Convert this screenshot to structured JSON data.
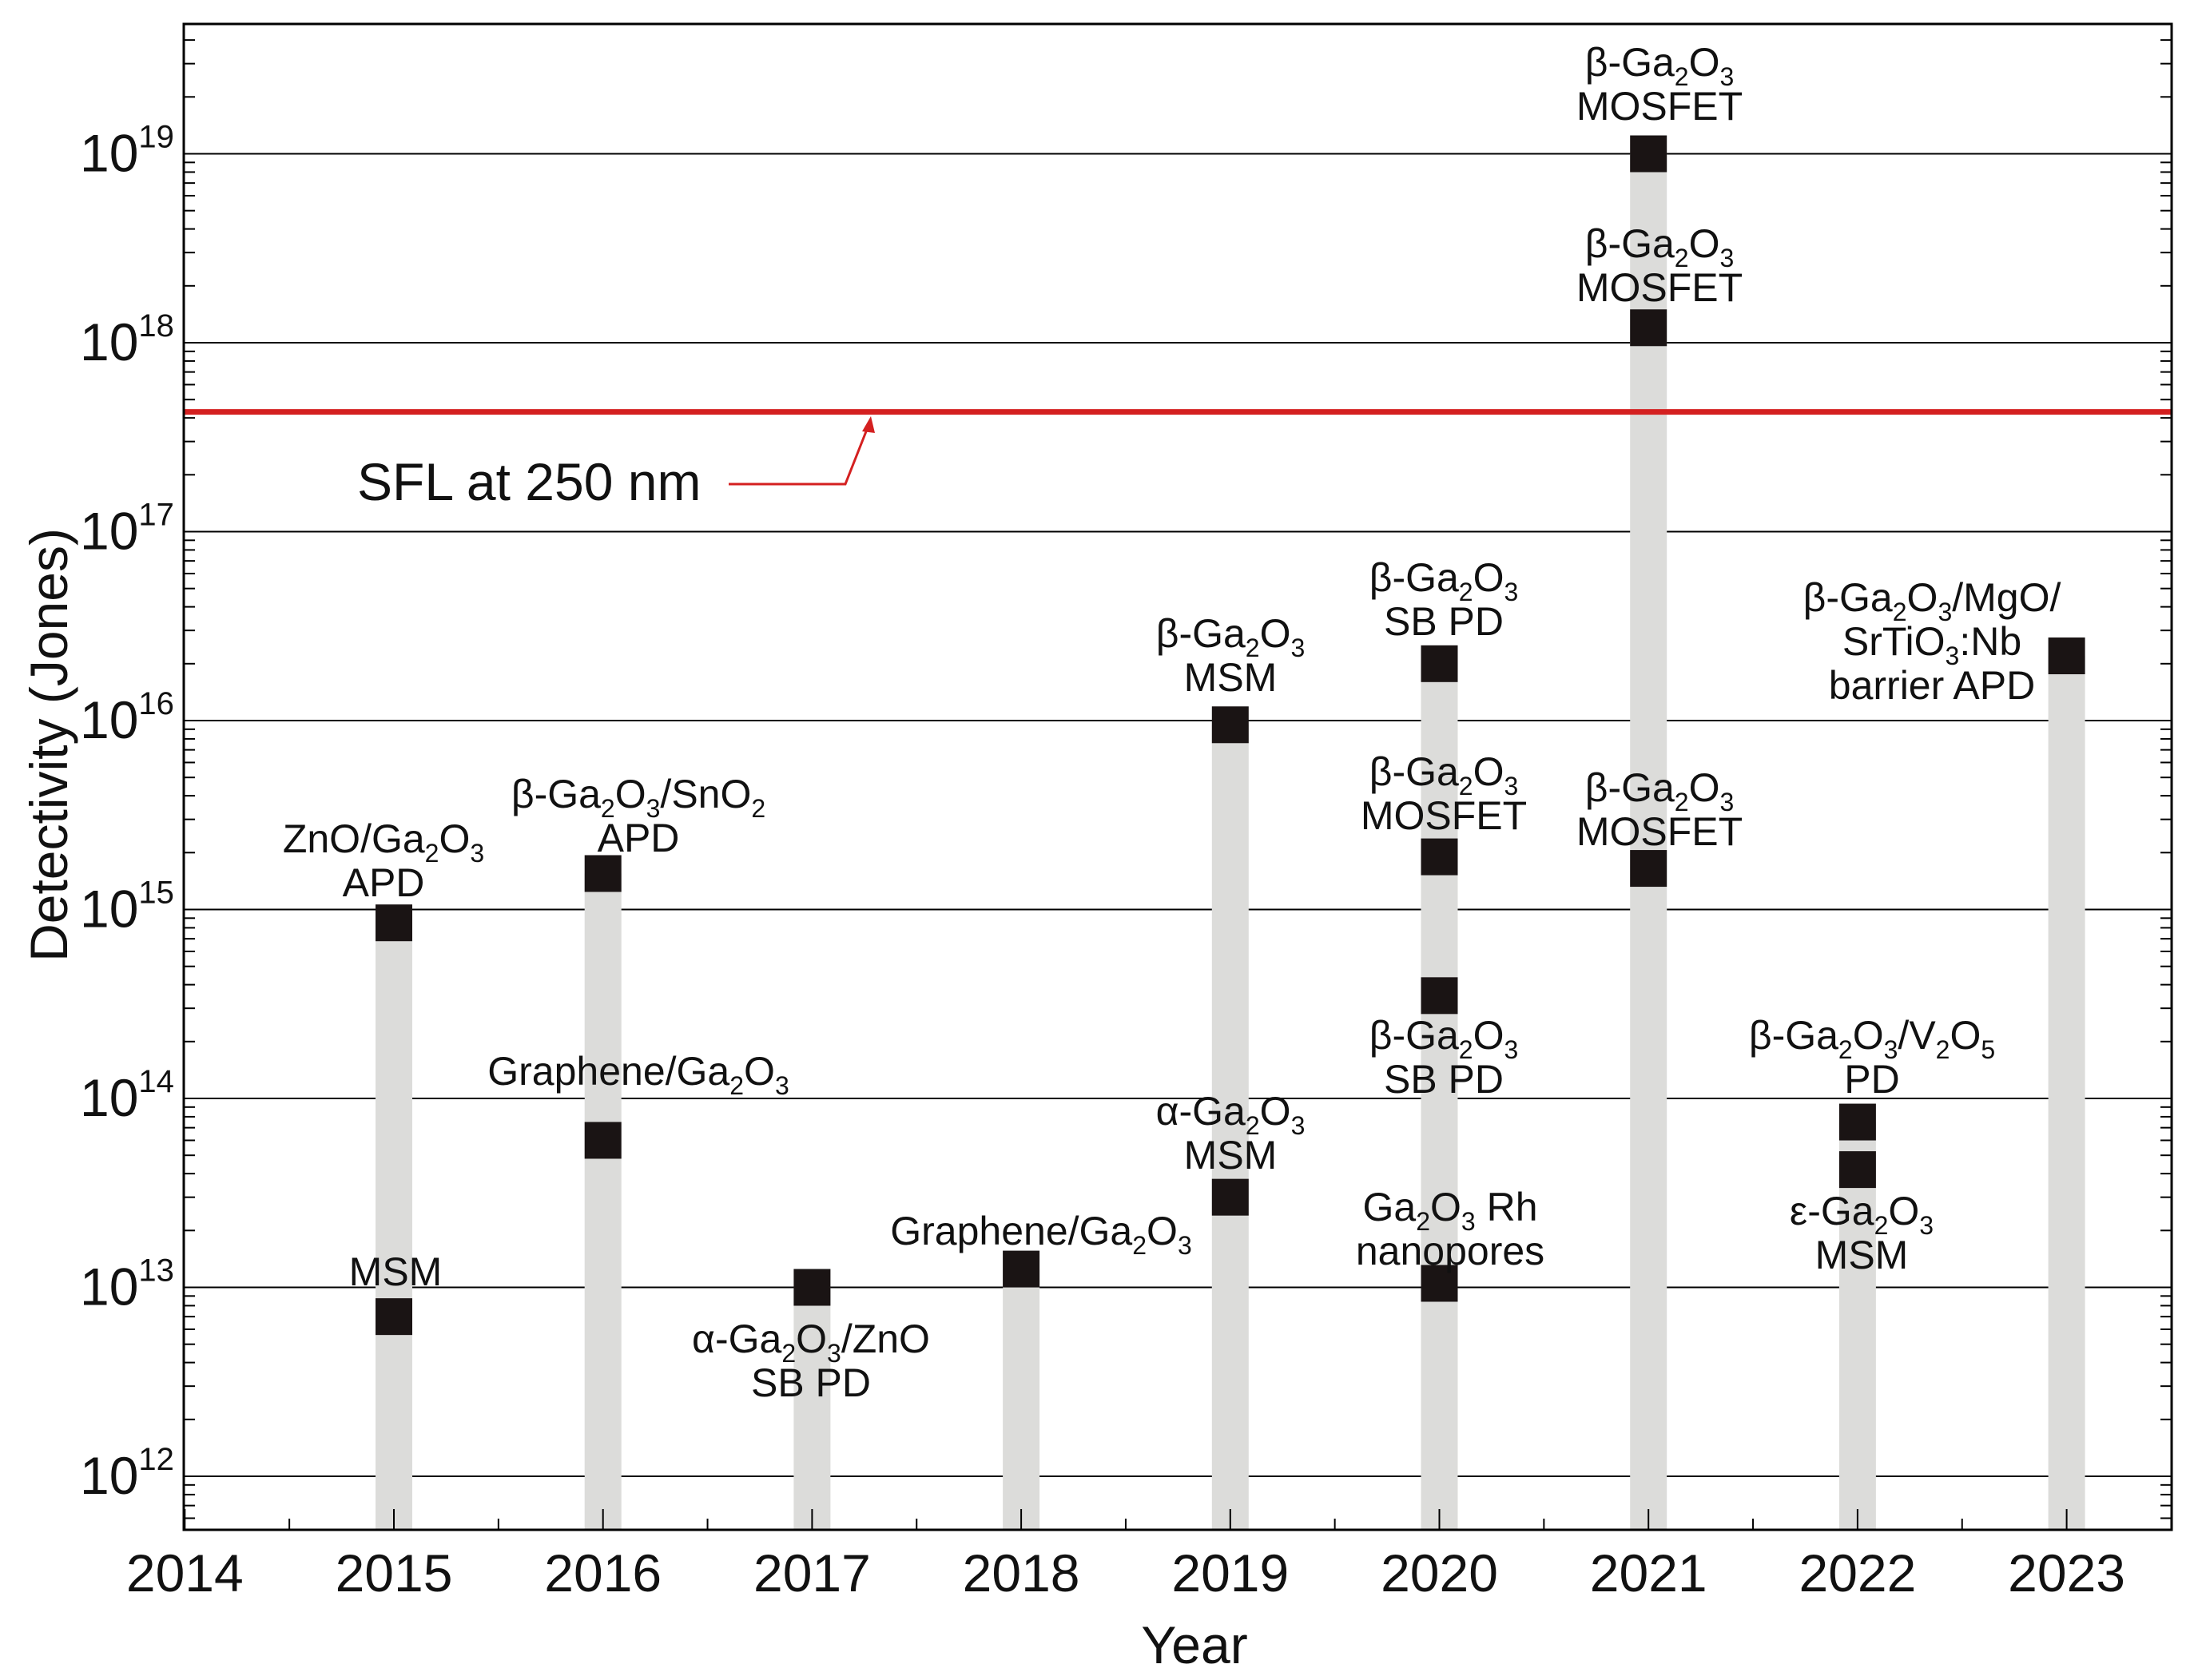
{
  "chart_data": {
    "type": "scatter",
    "title": "",
    "xlabel": "Year",
    "ylabel": "Detectivity (Jones)",
    "xlim": [
      2014,
      2023.5
    ],
    "ylim": [
      320000000000.0,
      3.2e+19
    ],
    "yscale": "log",
    "x_ticks": [
      "2014",
      "2015",
      "2016",
      "2017",
      "2018",
      "2019",
      "2020",
      "2021",
      "2022",
      "2023"
    ],
    "y_ticks": [
      {
        "base": "10",
        "exp": "12",
        "value": 1000000000000.0
      },
      {
        "base": "10",
        "exp": "13",
        "value": 10000000000000.0
      },
      {
        "base": "10",
        "exp": "14",
        "value": 100000000000000.0
      },
      {
        "base": "10",
        "exp": "15",
        "value": 1000000000000000.0
      },
      {
        "base": "10",
        "exp": "16",
        "value": 1e+16
      },
      {
        "base": "10",
        "exp": "17",
        "value": 1e+17
      },
      {
        "base": "10",
        "exp": "18",
        "value": 1e+18
      },
      {
        "base": "10",
        "exp": "19",
        "value": 1e+19
      }
    ],
    "grid": "horizontal at decades",
    "bar_color": "#dcdcda",
    "marker_color": "#1a1414",
    "sfl": {
      "label": "SFL at 250 nm",
      "value": 4.3e+17,
      "color": "#d42020"
    },
    "bars": [
      {
        "year": 2015,
        "top": 850000000000000.0
      },
      {
        "year": 2016,
        "top": 1550000000000000.0
      },
      {
        "year": 2017,
        "top": 10000000000000.0
      },
      {
        "year": 2018,
        "top": 12500000000000.0
      },
      {
        "year": 2019,
        "top": 9500000000000000.0
      },
      {
        "year": 2020,
        "top": 2e+16
      },
      {
        "year": 2021,
        "top": 1e+19
      },
      {
        "year": 2022,
        "top": 75000000000000.0
      },
      {
        "year": 2023,
        "top": 2.2e+16
      }
    ],
    "points": [
      {
        "year": 2015,
        "value": 850000000000000.0,
        "device": "ZnO/Ga2O3 APD"
      },
      {
        "year": 2015,
        "value": 7000000000000.0,
        "device": "MSM"
      },
      {
        "year": 2016,
        "value": 1550000000000000.0,
        "device": "β-Ga2O3/SnO2 APD"
      },
      {
        "year": 2016,
        "value": 60000000000000.0,
        "device": "Graphene/Ga2O3"
      },
      {
        "year": 2017,
        "value": 10000000000000.0,
        "device": "α-Ga2O3/ZnO SB PD"
      },
      {
        "year": 2018,
        "value": 12500000000000.0,
        "device": "Graphene/Ga2O3"
      },
      {
        "year": 2019,
        "value": 9500000000000000.0,
        "device": "β-Ga2O3 MSM"
      },
      {
        "year": 2019,
        "value": 30000000000000.0,
        "device": "α-Ga2O3 MSM"
      },
      {
        "year": 2020,
        "value": 2e+16,
        "device": "β-Ga2O3 SB PD"
      },
      {
        "year": 2020,
        "value": 1900000000000000.0,
        "device": "β-Ga2O3 MOSFET"
      },
      {
        "year": 2020,
        "value": 350000000000000.0,
        "device": "β-Ga2O3 SB PD"
      },
      {
        "year": 2020,
        "value": 10500000000000.0,
        "device": "Ga2O3 Rh nanopores"
      },
      {
        "year": 2021,
        "value": 1e+19,
        "device": "β-Ga2O3 MOSFET"
      },
      {
        "year": 2021,
        "value": 1.2e+18,
        "device": "β-Ga2O3 MOSFET"
      },
      {
        "year": 2021,
        "value": 1650000000000000.0,
        "device": "β-Ga2O3 MOSFET"
      },
      {
        "year": 2022,
        "value": 75000000000000.0,
        "device": "β-Ga2O3/V2O5 PD"
      },
      {
        "year": 2022,
        "value": 42000000000000.0,
        "device": "ε-Ga2O3 MSM"
      },
      {
        "year": 2023,
        "value": 2.2e+16,
        "device": "β-Ga2O3/MgO/SrTiO3:Nb barrier APD"
      }
    ],
    "annotations": [
      {
        "key": "zno-apd",
        "lines": [
          [
            {
              "t": "ZnO/Ga"
            },
            {
              "t": "2",
              "sub": true
            },
            {
              "t": "O"
            },
            {
              "t": "3",
              "sub": true
            }
          ],
          [
            {
              "t": "APD"
            }
          ]
        ]
      },
      {
        "key": "msm-2015",
        "lines": [
          [
            {
              "t": "MSM"
            }
          ]
        ]
      },
      {
        "key": "snO2-apd",
        "lines": [
          [
            {
              "t": "β-Ga"
            },
            {
              "t": "2",
              "sub": true
            },
            {
              "t": "O"
            },
            {
              "t": "3",
              "sub": true
            },
            {
              "t": "/SnO"
            },
            {
              "t": "2",
              "sub": true
            }
          ],
          [
            {
              "t": "APD"
            }
          ]
        ]
      },
      {
        "key": "graphene-2016",
        "lines": [
          [
            {
              "t": "Graphene/Ga"
            },
            {
              "t": "2",
              "sub": true
            },
            {
              "t": "O"
            },
            {
              "t": "3",
              "sub": true
            }
          ]
        ]
      },
      {
        "key": "alpha-zno",
        "lines": [
          [
            {
              "t": "α-Ga"
            },
            {
              "t": "2",
              "sub": true
            },
            {
              "t": "O"
            },
            {
              "t": "3",
              "sub": true
            },
            {
              "t": "/ZnO"
            }
          ],
          [
            {
              "t": "SB PD"
            }
          ]
        ]
      },
      {
        "key": "graphene-2018",
        "lines": [
          [
            {
              "t": "Graphene/Ga"
            },
            {
              "t": "2",
              "sub": true
            },
            {
              "t": "O"
            },
            {
              "t": "3",
              "sub": true
            }
          ]
        ]
      },
      {
        "key": "beta-msm-2019",
        "lines": [
          [
            {
              "t": "β-Ga"
            },
            {
              "t": "2",
              "sub": true
            },
            {
              "t": "O"
            },
            {
              "t": "3",
              "sub": true
            }
          ],
          [
            {
              "t": "MSM"
            }
          ]
        ]
      },
      {
        "key": "alpha-msm-2019",
        "lines": [
          [
            {
              "t": "α-Ga"
            },
            {
              "t": "2",
              "sub": true
            },
            {
              "t": "O"
            },
            {
              "t": "3",
              "sub": true
            }
          ],
          [
            {
              "t": "MSM"
            }
          ]
        ]
      },
      {
        "key": "sbpd-2020-top",
        "lines": [
          [
            {
              "t": "β-Ga"
            },
            {
              "t": "2",
              "sub": true
            },
            {
              "t": "O"
            },
            {
              "t": "3",
              "sub": true
            }
          ],
          [
            {
              "t": "SB PD"
            }
          ]
        ]
      },
      {
        "key": "mosfet-2020",
        "lines": [
          [
            {
              "t": "β-Ga"
            },
            {
              "t": "2",
              "sub": true
            },
            {
              "t": "O"
            },
            {
              "t": "3",
              "sub": true
            }
          ],
          [
            {
              "t": "MOSFET"
            }
          ]
        ]
      },
      {
        "key": "sbpd-2020-low",
        "lines": [
          [
            {
              "t": "β-Ga"
            },
            {
              "t": "2",
              "sub": true
            },
            {
              "t": "O"
            },
            {
              "t": "3",
              "sub": true
            }
          ],
          [
            {
              "t": "SB PD"
            }
          ]
        ]
      },
      {
        "key": "rh-2020",
        "lines": [
          [
            {
              "t": "Ga"
            },
            {
              "t": "2",
              "sub": true
            },
            {
              "t": "O"
            },
            {
              "t": "3",
              "sub": true
            },
            {
              "t": " Rh"
            }
          ],
          [
            {
              "t": "nanopores"
            }
          ]
        ]
      },
      {
        "key": "mosfet-2021-top",
        "lines": [
          [
            {
              "t": "β-Ga"
            },
            {
              "t": "2",
              "sub": true
            },
            {
              "t": "O"
            },
            {
              "t": "3",
              "sub": true
            }
          ],
          [
            {
              "t": "MOSFET"
            }
          ]
        ]
      },
      {
        "key": "mosfet-2021-mid",
        "lines": [
          [
            {
              "t": "β-Ga"
            },
            {
              "t": "2",
              "sub": true
            },
            {
              "t": "O"
            },
            {
              "t": "3",
              "sub": true
            }
          ],
          [
            {
              "t": "MOSFET"
            }
          ]
        ]
      },
      {
        "key": "mosfet-2021-low",
        "lines": [
          [
            {
              "t": "β-Ga"
            },
            {
              "t": "2",
              "sub": true
            },
            {
              "t": "O"
            },
            {
              "t": "3",
              "sub": true
            }
          ],
          [
            {
              "t": "MOSFET"
            }
          ]
        ]
      },
      {
        "key": "v2o5-2022",
        "lines": [
          [
            {
              "t": "β-Ga"
            },
            {
              "t": "2",
              "sub": true
            },
            {
              "t": "O"
            },
            {
              "t": "3",
              "sub": true
            },
            {
              "t": "/V"
            },
            {
              "t": "2",
              "sub": true
            },
            {
              "t": "O"
            },
            {
              "t": "5",
              "sub": true
            }
          ],
          [
            {
              "t": "PD"
            }
          ]
        ]
      },
      {
        "key": "eps-2022",
        "lines": [
          [
            {
              "t": "ε-Ga"
            },
            {
              "t": "2",
              "sub": true
            },
            {
              "t": "O"
            },
            {
              "t": "3",
              "sub": true
            }
          ],
          [
            {
              "t": "MSM"
            }
          ]
        ]
      },
      {
        "key": "mgo-2023",
        "lines": [
          [
            {
              "t": "β-Ga"
            },
            {
              "t": "2",
              "sub": true
            },
            {
              "t": "O"
            },
            {
              "t": "3",
              "sub": true
            },
            {
              "t": "/MgO/"
            }
          ],
          [
            {
              "t": "SrTiO"
            },
            {
              "t": "3",
              "sub": true
            },
            {
              "t": ":Nb"
            }
          ],
          [
            {
              "t": "barrier APD"
            }
          ]
        ]
      }
    ]
  }
}
